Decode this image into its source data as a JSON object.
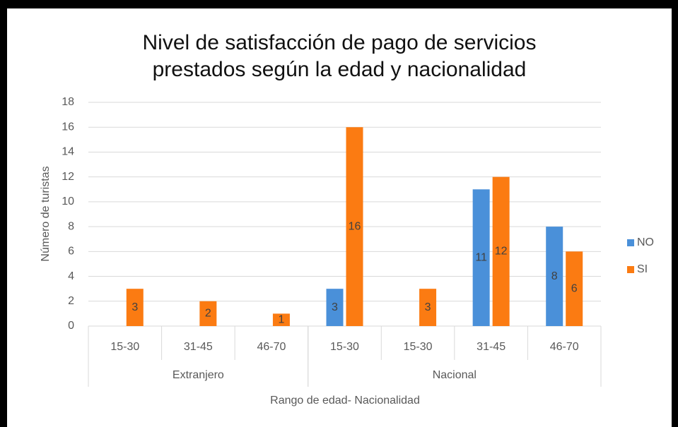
{
  "chart_data": {
    "type": "bar",
    "title": [
      "Nivel de satisfacción de pago de servicios",
      "prestados según la edad y nacionalidad"
    ],
    "y_label": "Número de turistas",
    "x_label": "Rango de edad- Nacionalidad",
    "groups": [
      {
        "label": "Extranjero",
        "categories": [
          "15-30",
          "31-45",
          "46-70"
        ]
      },
      {
        "label": "Nacional",
        "categories": [
          "15-30",
          "15-30",
          "31-45",
          "46-70"
        ]
      }
    ],
    "series": [
      {
        "name": "NO",
        "color": "#4a90d9",
        "values": [
          null,
          null,
          null,
          3,
          null,
          11,
          8
        ]
      },
      {
        "name": "SI",
        "color": "#fb7b12",
        "values": [
          3,
          2,
          1,
          16,
          3,
          12,
          6
        ]
      }
    ],
    "ylim": [
      0,
      18
    ],
    "yticks": [
      0,
      2,
      4,
      6,
      8,
      10,
      12,
      14,
      16,
      18
    ],
    "grid": true,
    "legend": "right"
  }
}
